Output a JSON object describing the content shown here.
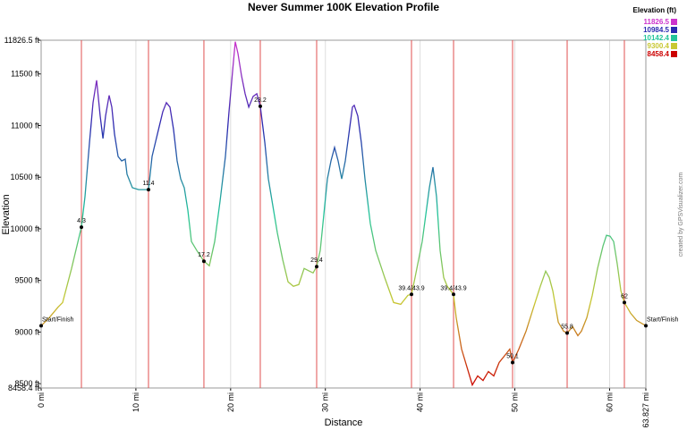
{
  "chart_data": {
    "type": "line",
    "title": "Never Summer 100K Elevation Profile",
    "x_label": "Distance",
    "y_label": "Elevation",
    "credit": "created by GPSVisualizer.com",
    "xlim": [
      0,
      63.827
    ],
    "ylim": [
      8458.4,
      11826.5
    ],
    "xticks": [
      {
        "value": 0,
        "label": "0 mi"
      },
      {
        "value": 10,
        "label": "10 mi"
      },
      {
        "value": 20,
        "label": "20 mi"
      },
      {
        "value": 30,
        "label": "30 mi"
      },
      {
        "value": 40,
        "label": "40 mi"
      },
      {
        "value": 50,
        "label": "50 mi"
      },
      {
        "value": 60,
        "label": "60 mi"
      },
      {
        "value": 63.827,
        "label": "63.827 mi"
      }
    ],
    "yticks": [
      {
        "value": 8458.4,
        "label": "8458.4 ft"
      },
      {
        "value": 8500,
        "label": "8500 ft"
      },
      {
        "value": 9000,
        "label": "9000 ft"
      },
      {
        "value": 9500,
        "label": "9500 ft"
      },
      {
        "value": 10000,
        "label": "10000 ft"
      },
      {
        "value": 10500,
        "label": "10500 ft"
      },
      {
        "value": 11000,
        "label": "11000 ft"
      },
      {
        "value": 11500,
        "label": "11500 ft"
      },
      {
        "value": 11826.5,
        "label": "11826.5 ft"
      }
    ],
    "grid": true,
    "legend": {
      "title": "Elevation (ft)",
      "position": "top-right"
    },
    "color_scale": [
      {
        "value": 11826.5,
        "color": "#cc33cc"
      },
      {
        "value": 10984.5,
        "color": "#2a2ab0"
      },
      {
        "value": 10142.4,
        "color": "#22c49a"
      },
      {
        "value": 9300.4,
        "color": "#c8c832"
      },
      {
        "value": 8458.4,
        "color": "#cc0000"
      }
    ],
    "x": [
      0,
      0.85,
      1.79,
      2.27,
      3.21,
      4.25,
      4.63,
      5.1,
      5.48,
      5.85,
      6.23,
      6.52,
      6.8,
      7.18,
      7.46,
      7.74,
      8.12,
      8.5,
      8.88,
      9.06,
      9.63,
      10.29,
      10.95,
      11.33,
      11.71,
      12.27,
      12.84,
      13.22,
      13.6,
      13.97,
      14.35,
      14.73,
      15.11,
      15.48,
      15.86,
      16.43,
      17.18,
      17.75,
      18.32,
      18.88,
      19.45,
      19.83,
      20.21,
      20.49,
      20.77,
      21.15,
      21.53,
      21.91,
      22.38,
      22.76,
      23.13,
      23.61,
      23.98,
      24.45,
      24.93,
      25.49,
      26.06,
      26.63,
      27.19,
      27.76,
      28.33,
      28.7,
      29.08,
      29.46,
      29.84,
      30.21,
      30.59,
      30.97,
      31.35,
      31.72,
      32.1,
      32.48,
      32.86,
      33.05,
      33.42,
      33.8,
      34.18,
      34.75,
      35.31,
      36.26,
      37.2,
      37.96,
      38.71,
      39.09,
      39.47,
      39.84,
      40.22,
      40.6,
      40.98,
      41.36,
      41.73,
      42.11,
      42.49,
      42.87,
      43.53,
      43.81,
      44.38,
      44.94,
      45.51,
      46.08,
      46.64,
      47.21,
      47.78,
      48.34,
      49.1,
      49.47,
      49.76,
      50.42,
      51.18,
      51.93,
      52.69,
      53.25,
      53.63,
      54.01,
      54.58,
      55.14,
      55.52,
      56.09,
      56.65,
      57.03,
      57.6,
      58.17,
      58.73,
      59.3,
      59.67,
      60.05,
      60.43,
      60.81,
      61.19,
      61.56,
      62.22,
      62.85,
      63.827
    ],
    "series": [
      {
        "values": [
          9061,
          9139,
          9243,
          9286,
          9616,
          10016,
          10311,
          10831,
          11222,
          11439,
          11092,
          10875,
          11092,
          11292,
          11179,
          10918,
          10701,
          10658,
          10675,
          10528,
          10398,
          10380,
          10380,
          10380,
          10701,
          10918,
          11135,
          11222,
          11179,
          10962,
          10658,
          10484,
          10398,
          10180,
          9877,
          9790,
          9686,
          9642,
          9877,
          10267,
          10701,
          11135,
          11526,
          11812,
          11699,
          11482,
          11309,
          11179,
          11283,
          11309,
          11187,
          10831,
          10484,
          10224,
          9963,
          9703,
          9486,
          9443,
          9460,
          9616,
          9590,
          9573,
          9634,
          9790,
          10137,
          10484,
          10658,
          10788,
          10658,
          10484,
          10658,
          10918,
          11179,
          11196,
          11092,
          10831,
          10484,
          10050,
          9790,
          9529,
          9286,
          9269,
          9356,
          9365,
          9529,
          9703,
          9877,
          10137,
          10398,
          10597,
          10311,
          9790,
          9529,
          9443,
          9365,
          9139,
          8835,
          8661,
          8488,
          8575,
          8531,
          8618,
          8575,
          8705,
          8792,
          8835,
          8705,
          8835,
          9009,
          9226,
          9443,
          9590,
          9529,
          9399,
          9096,
          9009,
          8991,
          9052,
          8965,
          9009,
          9139,
          9356,
          9616,
          9833,
          9937,
          9929,
          9877,
          9660,
          9399,
          9286,
          9182,
          9113,
          9061
        ]
      }
    ],
    "waypoints": [
      {
        "label": "Start/Finish",
        "x": 0,
        "y": 9061
      },
      {
        "label": "4.3",
        "x": 4.25,
        "y": 10016
      },
      {
        "label": "11.4",
        "x": 11.33,
        "y": 10380
      },
      {
        "label": "17.2",
        "x": 17.18,
        "y": 9686
      },
      {
        "label": "23.2",
        "x": 23.13,
        "y": 11187
      },
      {
        "label": "29.4",
        "x": 29.08,
        "y": 9634
      },
      {
        "label": "39.4/43.9",
        "x": 39.09,
        "y": 9365
      },
      {
        "label": "39.4/43.9",
        "x": 43.53,
        "y": 9365
      },
      {
        "label": "50.1",
        "x": 49.76,
        "y": 8705
      },
      {
        "label": "55.8",
        "x": 55.52,
        "y": 8991
      },
      {
        "label": "62",
        "x": 61.56,
        "y": 9286
      },
      {
        "label": "Start/Finish",
        "x": 63.827,
        "y": 9061
      }
    ]
  }
}
